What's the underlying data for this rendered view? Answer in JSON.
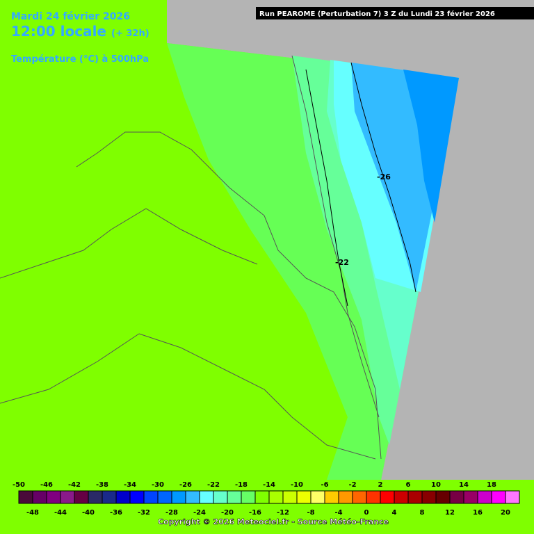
{
  "header": {
    "date": "Mardi 24 février 2026",
    "time": "12:00 locale",
    "lead": "(+ 32h)",
    "variable": "Température (°C) à 500hPa",
    "run": "Run PEAROME (Perturbation 7) 3 Z du Lundi 23 février 2026"
  },
  "contour_labels": [
    "-26",
    "-22"
  ],
  "legend": {
    "ticks": [
      -50,
      -48,
      -46,
      -44,
      -42,
      -40,
      -38,
      -36,
      -34,
      -32,
      -30,
      -28,
      -26,
      -24,
      -22,
      -20,
      -18,
      -16,
      -14,
      -12,
      -10,
      -8,
      -6,
      -4,
      -2,
      0,
      2,
      4,
      6,
      8,
      10,
      12,
      14,
      16,
      18,
      20
    ],
    "colors": [
      "#4a0a3a",
      "#660066",
      "#800080",
      "#8a1a8a",
      "#660044",
      "#2a2a66",
      "#1a2a8a",
      "#0000cc",
      "#0000ff",
      "#0044ff",
      "#0066ff",
      "#0099ff",
      "#33bbff",
      "#66ffff",
      "#66ffcc",
      "#66ff99",
      "#66ff66",
      "#80ff00",
      "#aaff00",
      "#ccff00",
      "#eeff00",
      "#ffff66",
      "#ffcc00",
      "#ff9900",
      "#ff6600",
      "#ff3300",
      "#ff0000",
      "#cc0000",
      "#aa0000",
      "#880000",
      "#660000",
      "#770044",
      "#990066",
      "#cc00cc",
      "#ff00ff",
      "#ff77ff"
    ]
  },
  "copyright": "Copyright © 2026 Meteociel.fr - Source Météo-France"
}
